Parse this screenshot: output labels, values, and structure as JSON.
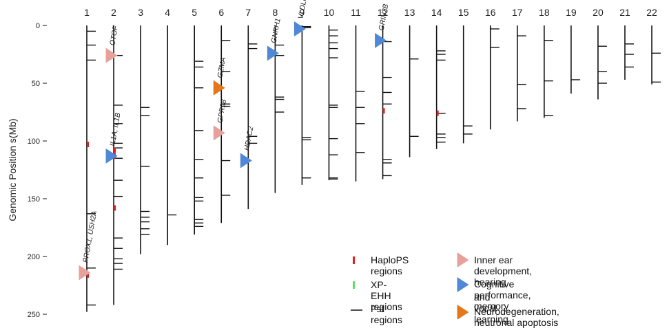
{
  "figure": {
    "y_axis_label": "Genomic Position s(Mb)",
    "y_ticks": [
      0,
      50,
      100,
      150,
      200,
      250
    ],
    "chromosomes": [
      {
        "label": "1",
        "length": 248,
        "fst": [
          5,
          17,
          30,
          163,
          210,
          242
        ],
        "haplops": [
          103,
          216
        ],
        "genes": [
          {
            "text": "PROX1, USH2A",
            "pos": 214,
            "category": "ear"
          }
        ]
      },
      {
        "label": "2",
        "length": 242,
        "fst": [
          26,
          69,
          85,
          102,
          106,
          115,
          134,
          148,
          184,
          193,
          202,
          206,
          211
        ],
        "haplops": [
          108,
          113,
          158
        ],
        "genes": [
          {
            "text": "OTOF",
            "pos": 26,
            "category": "ear"
          },
          {
            "text": "IL1A, IL1B",
            "pos": 113,
            "category": "cog"
          }
        ]
      },
      {
        "label": "3",
        "length": 198,
        "fst": [
          71,
          78,
          122,
          161,
          166,
          170,
          176,
          181
        ]
      },
      {
        "label": "4",
        "length": 190,
        "fst": [
          164
        ]
      },
      {
        "label": "5",
        "length": 181,
        "fst": [
          31,
          36,
          54,
          91,
          116,
          132,
          149,
          152,
          168,
          171,
          174
        ]
      },
      {
        "label": "6",
        "length": 171,
        "fst": [
          13,
          40,
          68,
          70,
          117,
          147
        ],
        "genes": [
          {
            "text": "GPR98",
            "pos": 93,
            "category": "ear"
          },
          {
            "text": "GZMA",
            "pos": 54,
            "category": "neuro"
          }
        ]
      },
      {
        "label": "7",
        "length": 159,
        "fst": [
          16,
          20,
          96,
          102
        ],
        "genes": [
          {
            "text": "HDAC2",
            "pos": 117,
            "category": "cog"
          }
        ]
      },
      {
        "label": "8",
        "length": 145,
        "fst": [
          17,
          26,
          62,
          64,
          75
        ],
        "genes": [
          {
            "text": "GNRH1",
            "pos": 24,
            "category": "cog"
          }
        ]
      },
      {
        "label": "9",
        "length": 138,
        "fst": [
          1,
          2,
          97,
          99,
          132
        ],
        "genes": [
          {
            "text": "VLDLR",
            "pos": 3,
            "category": "cog"
          }
        ]
      },
      {
        "label": "10",
        "length": 134,
        "fst": [
          4,
          9,
          15,
          20,
          28,
          69,
          71,
          98,
          112,
          132,
          133
        ]
      },
      {
        "label": "11",
        "length": 135,
        "fst": [
          57,
          71,
          85,
          110
        ]
      },
      {
        "label": "12",
        "length": 133,
        "fst": [
          14,
          45,
          58,
          68,
          116,
          119,
          130
        ],
        "haplops": [
          74
        ],
        "genes": [
          {
            "text": "GRIN2B",
            "pos": 13,
            "category": "cog"
          }
        ]
      },
      {
        "label": "13",
        "length": 114,
        "fst": [
          29,
          96
        ]
      },
      {
        "label": "14",
        "length": 107,
        "fst": [
          22,
          25,
          30,
          76,
          94,
          97,
          101
        ],
        "haplops": [
          76
        ]
      },
      {
        "label": "15",
        "length": 102,
        "fst": [
          87,
          94
        ]
      },
      {
        "label": "16",
        "length": 90,
        "fst": [
          3,
          19
        ]
      },
      {
        "label": "17",
        "length": 83,
        "fst": [
          9,
          51,
          72
        ]
      },
      {
        "label": "18",
        "length": 80,
        "fst": [
          13,
          48,
          78
        ]
      },
      {
        "label": "19",
        "length": 59,
        "fst": [
          47
        ]
      },
      {
        "label": "20",
        "length": 64,
        "fst": [
          18,
          40,
          50
        ]
      },
      {
        "label": "21",
        "length": 47,
        "fst": [
          16,
          25,
          36
        ]
      },
      {
        "label": "22",
        "length": 51,
        "fst": [
          24,
          49
        ]
      }
    ]
  },
  "legend": {
    "haplops": "HaploPS regions",
    "xpehh": "XP-EHH regions",
    "fst": "Fst regions",
    "ear": "Inner ear development, hearing",
    "cog_line1": "Cognitive performance, memory",
    "cog_line2": "and vocal learning",
    "neuro": "Neurodegeneration, neutronal apoptosis"
  },
  "colors": {
    "ear": "#e7a09c",
    "cog": "#4f88d6",
    "neuro": "#e3771a",
    "haplops": "#e01e1e",
    "xpehh": "#5ee05e",
    "line": "#111111"
  }
}
